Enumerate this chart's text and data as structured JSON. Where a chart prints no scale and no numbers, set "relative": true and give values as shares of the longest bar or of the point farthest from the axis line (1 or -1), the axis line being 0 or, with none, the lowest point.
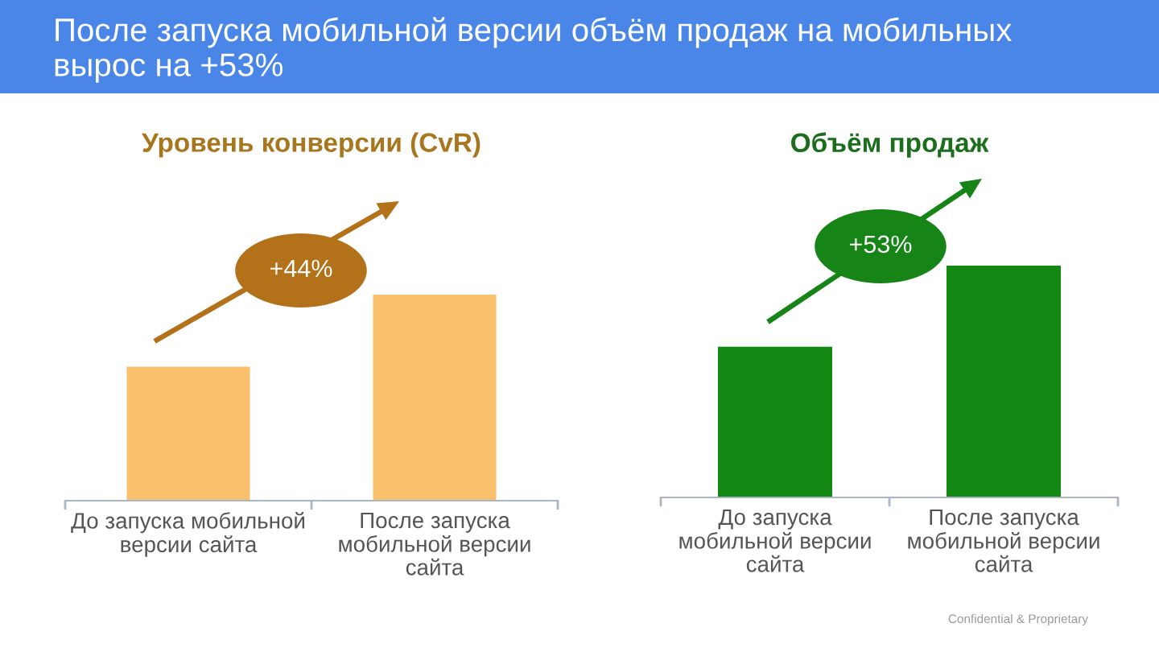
{
  "chart_data": [
    {
      "type": "other",
      "title": "После запуска мобильной версии объём продаж на мобильных\nвырос на +53%",
      "annotations": [
        "Confidential & Proprietary"
      ]
    },
    {
      "type": "bar",
      "title": "Уровень конверсии (CvR)",
      "categories": [
        "До запуска мобильной\nверсии сайта",
        "После запуска\nмобильной версии\nсайта"
      ],
      "values": [
        0.65,
        1
      ],
      "color": "#fac06c",
      "relative": true,
      "annotations": [
        "+44%"
      ]
    },
    {
      "type": "bar",
      "title": "Объём продаж",
      "categories": [
        "До запуска\nмобильной версии\nсайта",
        "После запуска\nмобильной версии\nсайта"
      ],
      "values": [
        0.65,
        1
      ],
      "color": "#138813",
      "relative": true,
      "annotations": [
        "+53%"
      ]
    }
  ]
}
